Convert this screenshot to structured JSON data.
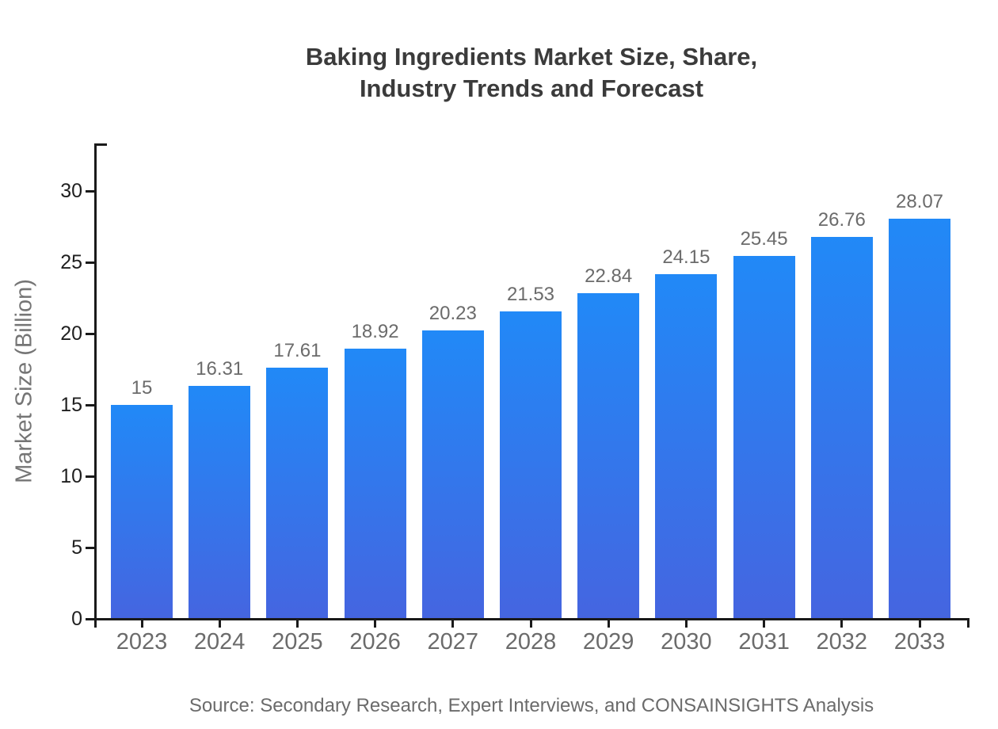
{
  "figure": {
    "title_line1": "Baking Ingredients Market Size, Share,",
    "title_line2": "Industry Trends and Forecast",
    "source": "Source: Secondary Research, Expert Interviews, and CONSAINSIGHTS Analysis"
  },
  "chart_data": {
    "type": "bar",
    "title": "Baking Ingredients Market Size, Share, Industry Trends and Forecast",
    "categories": [
      "2023",
      "2024",
      "2025",
      "2026",
      "2027",
      "2028",
      "2029",
      "2030",
      "2031",
      "2032",
      "2033"
    ],
    "values": [
      15,
      16.31,
      17.61,
      18.92,
      20.23,
      21.53,
      22.84,
      24.15,
      25.45,
      26.76,
      28.07
    ],
    "value_labels": [
      "15",
      "16.31",
      "17.61",
      "18.92",
      "20.23",
      "21.53",
      "22.84",
      "24.15",
      "25.45",
      "26.76",
      "28.07"
    ],
    "xlabel": "",
    "ylabel": "Market Size (Billion)",
    "ylim": [
      0,
      33.3
    ],
    "yticks": [
      0,
      5,
      10,
      15,
      20,
      25,
      30
    ],
    "grid": false,
    "legend": "none",
    "bar_gradient_top": "#2189f7",
    "bar_gradient_bottom": "#4565e0"
  },
  "colors": {
    "background": "#ffffff",
    "axis": "#1a1a1a",
    "ytick_label": "#1f1f1f",
    "xtick_label": "#6b6b6b",
    "value_label": "#6b6b6b",
    "title": "#3b3b3b",
    "ylabel": "#757575",
    "source": "#6b6b6b"
  }
}
